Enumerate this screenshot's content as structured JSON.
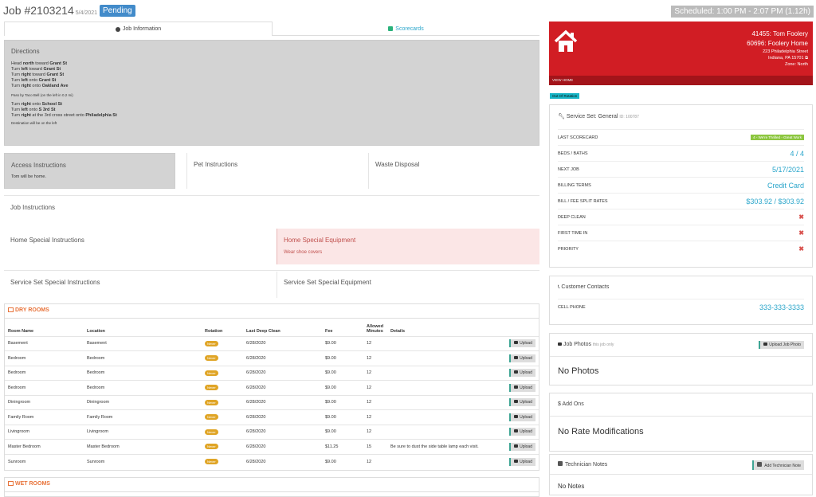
{
  "header": {
    "job_number": "Job #2103214",
    "job_date": "5/4/2021",
    "status": "Pending",
    "scheduled": "Scheduled: 1:00 PM - 2:07 PM (1.12h)"
  },
  "tabs": [
    {
      "label": "Job Information",
      "icon": "info-icon"
    },
    {
      "label": "Scorecards",
      "icon": "check-icon"
    }
  ],
  "directions": {
    "title": "Directions",
    "lines": [
      {
        "pre": "Head ",
        "bold": "north",
        "mid": " toward ",
        "bold2": "Grant St"
      },
      {
        "pre": "Turn ",
        "bold": "left",
        "mid": " toward ",
        "bold2": "Grant St"
      },
      {
        "pre": "Turn ",
        "bold": "right",
        "mid": " toward ",
        "bold2": "Grant St"
      },
      {
        "pre": "Turn ",
        "bold": "left",
        "mid": " onto ",
        "bold2": "Grant St"
      },
      {
        "pre": "Turn ",
        "bold": "right",
        "mid": " onto ",
        "bold2": "Oakland Ave"
      }
    ],
    "note1": "Pass by Taco Bell (on the left in 0.2 mi)",
    "lines2": [
      {
        "pre": "Turn ",
        "bold": "right",
        "mid": " onto ",
        "bold2": "School St"
      },
      {
        "pre": "Turn ",
        "bold": "left",
        "mid": " onto ",
        "bold2": "S 3rd St"
      },
      {
        "pre": "Turn ",
        "bold": "right",
        "mid": " at the 3rd cross street onto ",
        "bold2": "Philadelphia St"
      }
    ],
    "note2": "Destination will be on the left"
  },
  "instructions": {
    "access_title": "Access Instructions",
    "access_text": "Tom will be home.",
    "pet_title": "Pet Instructions",
    "waste_title": "Waste Disposal",
    "job_title": "Job Instructions",
    "home_special_title": "Home Special Instructions",
    "home_equipment_title": "Home Special Equipment",
    "home_equipment_text": "Wear shoe covers",
    "ss_special_title": "Service Set Special Instructions",
    "ss_equipment_title": "Service Set Special Equipment"
  },
  "dry_rooms": {
    "title": "DRY ROOMS",
    "headers": [
      "Room Name",
      "Location",
      "Rotation",
      "Last Deep Clean",
      "Fee",
      "Allowed Minutes",
      "Details"
    ],
    "upload_label": "Upload",
    "rows": [
      {
        "name": "Basement",
        "location": "Basement",
        "rotation": "Never",
        "last": "6/28/2020",
        "fee": "$9.00",
        "min": "12",
        "details": ""
      },
      {
        "name": "Bedroom",
        "location": "Bedroom",
        "rotation": "Never",
        "last": "6/28/2020",
        "fee": "$9.00",
        "min": "12",
        "details": ""
      },
      {
        "name": "Bedroom",
        "location": "Bedroom",
        "rotation": "Never",
        "last": "6/28/2020",
        "fee": "$9.00",
        "min": "12",
        "details": ""
      },
      {
        "name": "Bedroom",
        "location": "Bedroom",
        "rotation": "Never",
        "last": "6/28/2020",
        "fee": "$9.00",
        "min": "12",
        "details": ""
      },
      {
        "name": "Diningroom",
        "location": "Diningroom",
        "rotation": "Never",
        "last": "6/28/2020",
        "fee": "$9.00",
        "min": "12",
        "details": ""
      },
      {
        "name": "Family Room",
        "location": "Family Room",
        "rotation": "Never",
        "last": "6/28/2020",
        "fee": "$9.00",
        "min": "12",
        "details": ""
      },
      {
        "name": "Livingroom",
        "location": "Livingroom",
        "rotation": "Never",
        "last": "6/28/2020",
        "fee": "$9.00",
        "min": "12",
        "details": ""
      },
      {
        "name": "Master Bedroom",
        "location": "Master Bedroom",
        "rotation": "Never",
        "last": "6/28/2020",
        "fee": "$11.25",
        "min": "15",
        "details": "Be sure to dust the side table lamp each visit."
      },
      {
        "name": "Sunroom",
        "location": "Sunroom",
        "rotation": "Never",
        "last": "6/28/2020",
        "fee": "$9.00",
        "min": "12",
        "details": ""
      }
    ]
  },
  "wet_rooms": {
    "title": "WET ROOMS"
  },
  "home": {
    "customer": "41455: Tom Foolery",
    "home": "60696: Foolery Home",
    "street": "223 Philadelphia Street",
    "city": "Indiana, PA 15701",
    "zone": "Zone: North",
    "view_home": "VIEW HOME",
    "out_of_rotation": "Out Of Rotation"
  },
  "service_set": {
    "title": "Service Set: General",
    "id": "ID: 100787",
    "rows": [
      {
        "key": "LAST SCORECARD",
        "badge": "4 - We're Thrilled - Great Work"
      },
      {
        "key": "BEDS / BATHS",
        "value": "4 / 4"
      },
      {
        "key": "NEXT JOB",
        "value": "5/17/2021"
      },
      {
        "key": "BILLING TERMS",
        "value": "Credit Card"
      },
      {
        "key": "BILL / FEE SPLIT RATES",
        "value": "$303.92 / $303.92"
      },
      {
        "key": "DEEP CLEAN",
        "value": "✖"
      },
      {
        "key": "FIRST TIME IN",
        "value": "✖"
      },
      {
        "key": "PRIORITY",
        "value": "✖"
      }
    ]
  },
  "contacts": {
    "title": "Customer Contacts",
    "cell_label": "CELL PHONE",
    "cell_value": "333-333-3333"
  },
  "photos": {
    "title": "Job Photos",
    "subtitle": "this job only",
    "button": "Upload Job Photo",
    "empty": "No Photos"
  },
  "addons": {
    "title": "$ Add Ons",
    "empty": "No Rate Modifications"
  },
  "notes": {
    "title": "Technician Notes",
    "button": "Add Technician Note",
    "empty": "No Notes"
  }
}
